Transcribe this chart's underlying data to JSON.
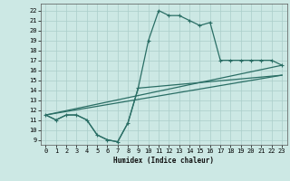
{
  "xlabel": "Humidex (Indice chaleur)",
  "background_color": "#cce8e4",
  "grid_color": "#aaceca",
  "line_color": "#2a6e65",
  "xlim": [
    -0.5,
    23.5
  ],
  "ylim": [
    8.5,
    22.7
  ],
  "xticks": [
    0,
    1,
    2,
    3,
    4,
    5,
    6,
    7,
    8,
    9,
    10,
    11,
    12,
    13,
    14,
    15,
    16,
    17,
    18,
    19,
    20,
    21,
    22,
    23
  ],
  "yticks": [
    9,
    10,
    11,
    12,
    13,
    14,
    15,
    16,
    17,
    18,
    19,
    20,
    21,
    22
  ],
  "line1_x": [
    0,
    1,
    2,
    3,
    4,
    5,
    6,
    7,
    8,
    9,
    10,
    11,
    12,
    13,
    14,
    15,
    16,
    17,
    18,
    19,
    20,
    21,
    22,
    23
  ],
  "line1_y": [
    11.5,
    11.0,
    11.5,
    11.5,
    11.0,
    9.5,
    9.0,
    8.8,
    10.7,
    14.2,
    19.0,
    22.0,
    21.5,
    21.5,
    21.0,
    20.5,
    20.8,
    17.0,
    17.0,
    17.0,
    17.0,
    17.0,
    17.0,
    16.5
  ],
  "line2_x": [
    0,
    1,
    2,
    3,
    4,
    5,
    6,
    7,
    8,
    9,
    23
  ],
  "line2_y": [
    11.5,
    11.0,
    11.5,
    11.5,
    11.0,
    9.5,
    9.0,
    8.8,
    10.7,
    14.2,
    15.5
  ],
  "trend1_x": [
    0,
    23
  ],
  "trend1_y": [
    11.5,
    15.5
  ],
  "trend2_x": [
    0,
    23
  ],
  "trend2_y": [
    11.5,
    16.5
  ]
}
